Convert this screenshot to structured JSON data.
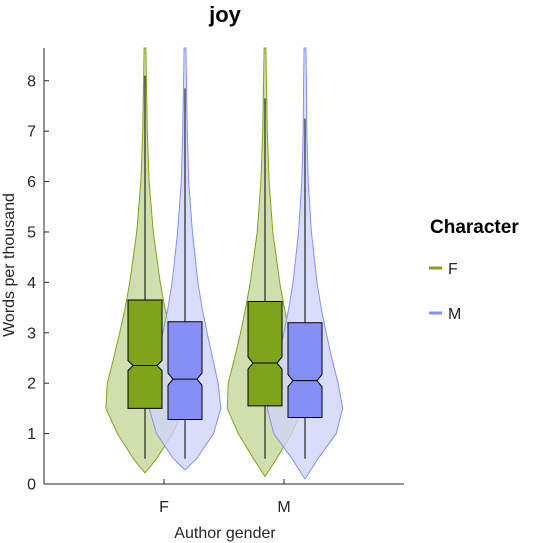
{
  "chart_data": {
    "type": "violin",
    "title": "joy",
    "xlabel": "Author gender",
    "ylabel": "Words per thousand",
    "ylim": [
      0,
      8.65
    ],
    "yticks": [
      0,
      1,
      2,
      3,
      4,
      5,
      6,
      7,
      8
    ],
    "categories": [
      "F",
      "M"
    ],
    "legend": {
      "title": "Character",
      "placement": "right",
      "entries": [
        {
          "label": "F",
          "color": "#7fa31a"
        },
        {
          "label": "M",
          "color": "#8490f5"
        }
      ]
    },
    "series": [
      {
        "name": "F",
        "color": "#7fa31a",
        "fill": "#c5d79a",
        "groups": [
          {
            "category": "F",
            "whisker_low": 0.5,
            "q1": 1.5,
            "median": 2.35,
            "q3": 3.65,
            "whisker_high": 8.1,
            "notch_low": 2.25,
            "notch_high": 2.45,
            "density": [
              [
                0.22,
                0.0
              ],
              [
                0.5,
                0.25
              ],
              [
                1.0,
                0.6
              ],
              [
                1.5,
                0.85
              ],
              [
                2.0,
                0.82
              ],
              [
                2.5,
                0.68
              ],
              [
                3.0,
                0.55
              ],
              [
                3.5,
                0.43
              ],
              [
                4.0,
                0.33
              ],
              [
                5.0,
                0.18
              ],
              [
                6.0,
                0.09
              ],
              [
                7.0,
                0.05
              ],
              [
                8.0,
                0.03
              ],
              [
                8.65,
                0.02
              ]
            ]
          },
          {
            "category": "M",
            "whisker_low": 0.5,
            "q1": 1.55,
            "median": 2.4,
            "q3": 3.62,
            "whisker_high": 7.65,
            "notch_low": 2.28,
            "notch_high": 2.52,
            "density": [
              [
                0.15,
                0.0
              ],
              [
                0.5,
                0.25
              ],
              [
                1.0,
                0.58
              ],
              [
                1.5,
                0.82
              ],
              [
                2.0,
                0.8
              ],
              [
                2.5,
                0.66
              ],
              [
                3.0,
                0.53
              ],
              [
                3.5,
                0.42
              ],
              [
                4.0,
                0.32
              ],
              [
                5.0,
                0.17
              ],
              [
                6.0,
                0.09
              ],
              [
                7.0,
                0.05
              ],
              [
                8.0,
                0.03
              ],
              [
                8.65,
                0.02
              ]
            ]
          }
        ]
      },
      {
        "name": "M",
        "color": "#8490f5",
        "fill": "#d0d4f8",
        "groups": [
          {
            "category": "F",
            "whisker_low": 0.5,
            "q1": 1.28,
            "median": 2.08,
            "q3": 3.22,
            "whisker_high": 7.85,
            "notch_low": 1.96,
            "notch_high": 2.2,
            "density": [
              [
                0.28,
                0.0
              ],
              [
                0.5,
                0.25
              ],
              [
                1.0,
                0.62
              ],
              [
                1.5,
                0.78
              ],
              [
                2.0,
                0.72
              ],
              [
                2.5,
                0.6
              ],
              [
                3.0,
                0.48
              ],
              [
                3.5,
                0.37
              ],
              [
                4.0,
                0.28
              ],
              [
                5.0,
                0.16
              ],
              [
                6.0,
                0.08
              ],
              [
                7.0,
                0.05
              ],
              [
                8.0,
                0.03
              ],
              [
                8.65,
                0.02
              ]
            ]
          },
          {
            "category": "M",
            "whisker_low": 0.5,
            "q1": 1.32,
            "median": 2.05,
            "q3": 3.2,
            "whisker_high": 7.25,
            "notch_low": 1.93,
            "notch_high": 2.17,
            "density": [
              [
                0.1,
                0.0
              ],
              [
                0.5,
                0.28
              ],
              [
                1.0,
                0.68
              ],
              [
                1.5,
                0.82
              ],
              [
                2.0,
                0.72
              ],
              [
                2.5,
                0.58
              ],
              [
                3.0,
                0.46
              ],
              [
                3.5,
                0.35
              ],
              [
                4.0,
                0.26
              ],
              [
                5.0,
                0.14
              ],
              [
                6.0,
                0.07
              ],
              [
                7.0,
                0.04
              ],
              [
                8.0,
                0.03
              ],
              [
                8.65,
                0.02
              ]
            ]
          }
        ]
      }
    ]
  }
}
